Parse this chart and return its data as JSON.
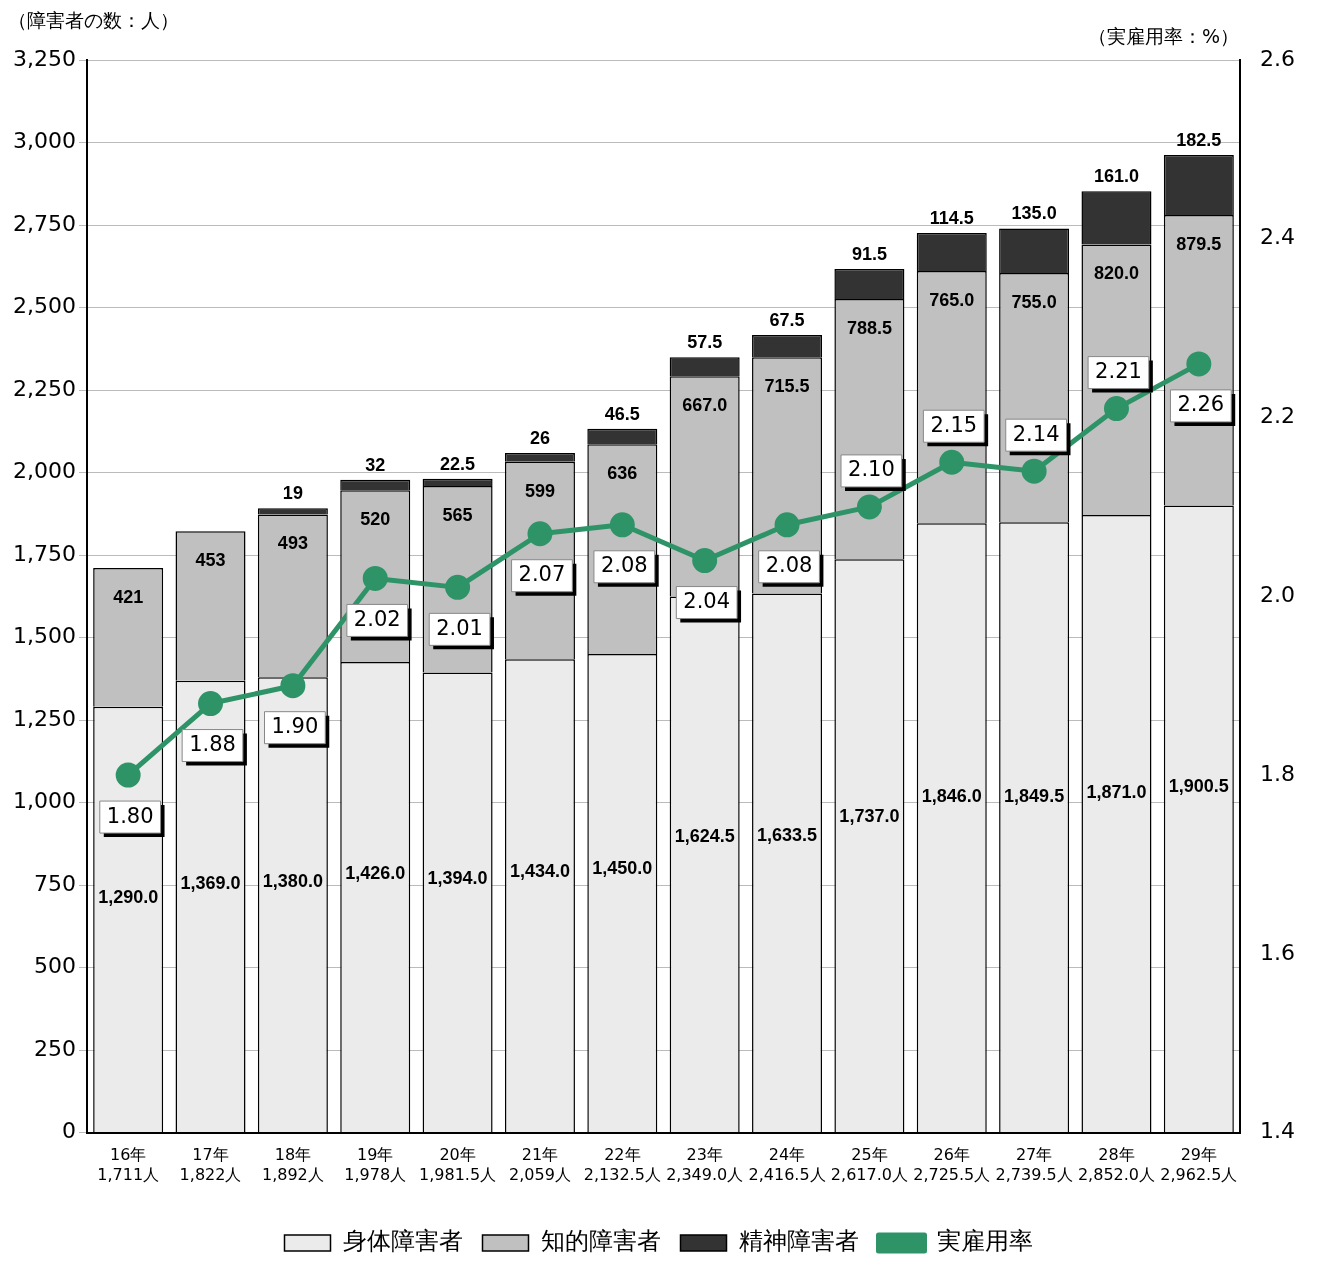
{
  "chart_data": {
    "type": "bar",
    "stacked": true,
    "ylabel": "（障害者の数：人）",
    "y2label": "（実雇用率：%）",
    "categories": [
      "16年",
      "17年",
      "18年",
      "19年",
      "20年",
      "21年",
      "22年",
      "23年",
      "24年",
      "25年",
      "26年",
      "27年",
      "28年",
      "29年"
    ],
    "totals": [
      "1,711人",
      "1,822人",
      "1,892人",
      "1,978人",
      "1,981.5人",
      "2,059人",
      "2,132.5人",
      "2,349.0人",
      "2,416.5人",
      "2,617.0人",
      "2,725.5人",
      "2,739.5人",
      "2,852.0人",
      "2,962.5人"
    ],
    "series": [
      {
        "name": "身体障害者",
        "color": "#ebebeb",
        "values": [
          1290,
          1369,
          1380,
          1426,
          1394,
          1434,
          1450,
          1624.5,
          1633.5,
          1737,
          1846,
          1849.5,
          1871,
          1900.5
        ],
        "value_labels": [
          "1,290.0",
          "1,369.0",
          "1,380.0",
          "1,426.0",
          "1,394.0",
          "1,434.0",
          "1,450.0",
          "1,624.5",
          "1,633.5",
          "1,737.0",
          "1,846.0",
          "1,849.5",
          "1,871.0",
          "1,900.5"
        ]
      },
      {
        "name": "知的障害者",
        "color": "#c0c0c0",
        "values": [
          421,
          453,
          493,
          520,
          565,
          599,
          636,
          667,
          715.5,
          788.5,
          765,
          755,
          820,
          879.5
        ],
        "value_labels": [
          "421",
          "453",
          "493",
          "520",
          "565",
          "599",
          "636",
          "667.0",
          "715.5",
          "788.5",
          "765.0",
          "755.0",
          "820.0",
          "879.5"
        ]
      },
      {
        "name": "精神障害者",
        "color": "#333333",
        "values": [
          null,
          null,
          19,
          32,
          22.5,
          26,
          46.5,
          57.5,
          67.5,
          91.5,
          114.5,
          135,
          161,
          182.5
        ],
        "value_labels": [
          null,
          null,
          "19",
          "32",
          "22.5",
          "26",
          "46.5",
          "57.5",
          "67.5",
          "91.5",
          "114.5",
          "135.0",
          "161.0",
          "182.5"
        ]
      },
      {
        "name": "実雇用率",
        "type": "line",
        "axis": "y2",
        "color": "#2e9468",
        "marker": "circle",
        "values": [
          1.8,
          1.88,
          1.9,
          2.02,
          2.01,
          2.07,
          2.08,
          2.04,
          2.08,
          2.1,
          2.15,
          2.14,
          2.21,
          2.26
        ],
        "value_labels": [
          "1.80",
          "1.88",
          "1.90",
          "2.02",
          "2.01",
          "2.07",
          "2.08",
          "2.04",
          "2.08",
          "2.10",
          "2.15",
          "2.14",
          "2.21",
          "2.26"
        ]
      }
    ],
    "ylim": [
      0,
      3250
    ],
    "yticks": [
      0,
      250,
      500,
      750,
      {
        "value": 1000,
        "label": "1,000"
      },
      {
        "value": 1250,
        "label": "1,250"
      },
      {
        "value": 1500,
        "label": "1,500"
      },
      {
        "value": 1750,
        "label": "1,750"
      },
      {
        "value": 2000,
        "label": "2,000"
      },
      {
        "value": 2250,
        "label": "2,250"
      },
      {
        "value": 2500,
        "label": "2,500"
      },
      {
        "value": 2750,
        "label": "2,750"
      },
      {
        "value": 3000,
        "label": "3,000"
      },
      {
        "value": 3250,
        "label": "3,250"
      }
    ],
    "y2lim": [
      1.4,
      2.6
    ],
    "y2ticks": [
      1.4,
      1.6,
      1.8,
      {
        "value": 2,
        "label": "2.0"
      },
      2.2,
      2.4,
      2.6
    ],
    "grid": "y",
    "legend": "bottom"
  }
}
